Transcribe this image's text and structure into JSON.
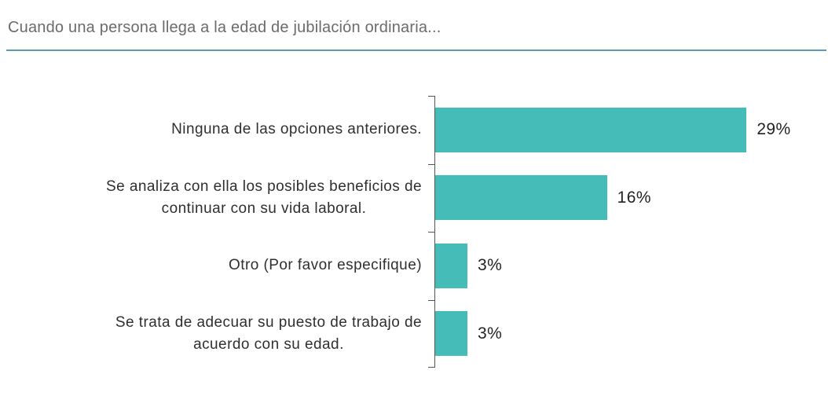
{
  "title": "Cuando una persona llega a la edad de jubilación ordinaria...",
  "separator_color": "#579dbb",
  "chart_data": {
    "type": "bar",
    "orientation": "horizontal",
    "title": "Cuando una persona llega a la edad de jubilación ordinaria...",
    "bar_color": "#46bcb8",
    "xlim": [
      0,
      30
    ],
    "grid": false,
    "legend": false,
    "categories": [
      "Ninguna de las opciones anteriores.",
      "Se analiza con ella los posibles beneficios de continuar con su vida laboral.",
      "Otro (Por favor especifique)",
      "Se trata de adecuar su puesto de trabajo de acuerdo con su edad."
    ],
    "values": [
      29,
      16,
      3,
      3
    ],
    "value_labels": [
      "29%",
      "16%",
      "3%",
      "3%"
    ],
    "rows": [
      {
        "label_lines": [
          "Ninguna de las opciones anteriores."
        ],
        "value": 29,
        "value_label": "29%"
      },
      {
        "label_lines": [
          "Se analiza con ella los posibles beneficios de",
          "continuar con su vida laboral."
        ],
        "value": 16,
        "value_label": "16%"
      },
      {
        "label_lines": [
          "Otro (Por favor especifique)"
        ],
        "value": 3,
        "value_label": "3%"
      },
      {
        "label_lines": [
          "Se trata de adecuar su puesto de trabajo de",
          "acuerdo con su edad."
        ],
        "value": 3,
        "value_label": "3%"
      }
    ]
  }
}
